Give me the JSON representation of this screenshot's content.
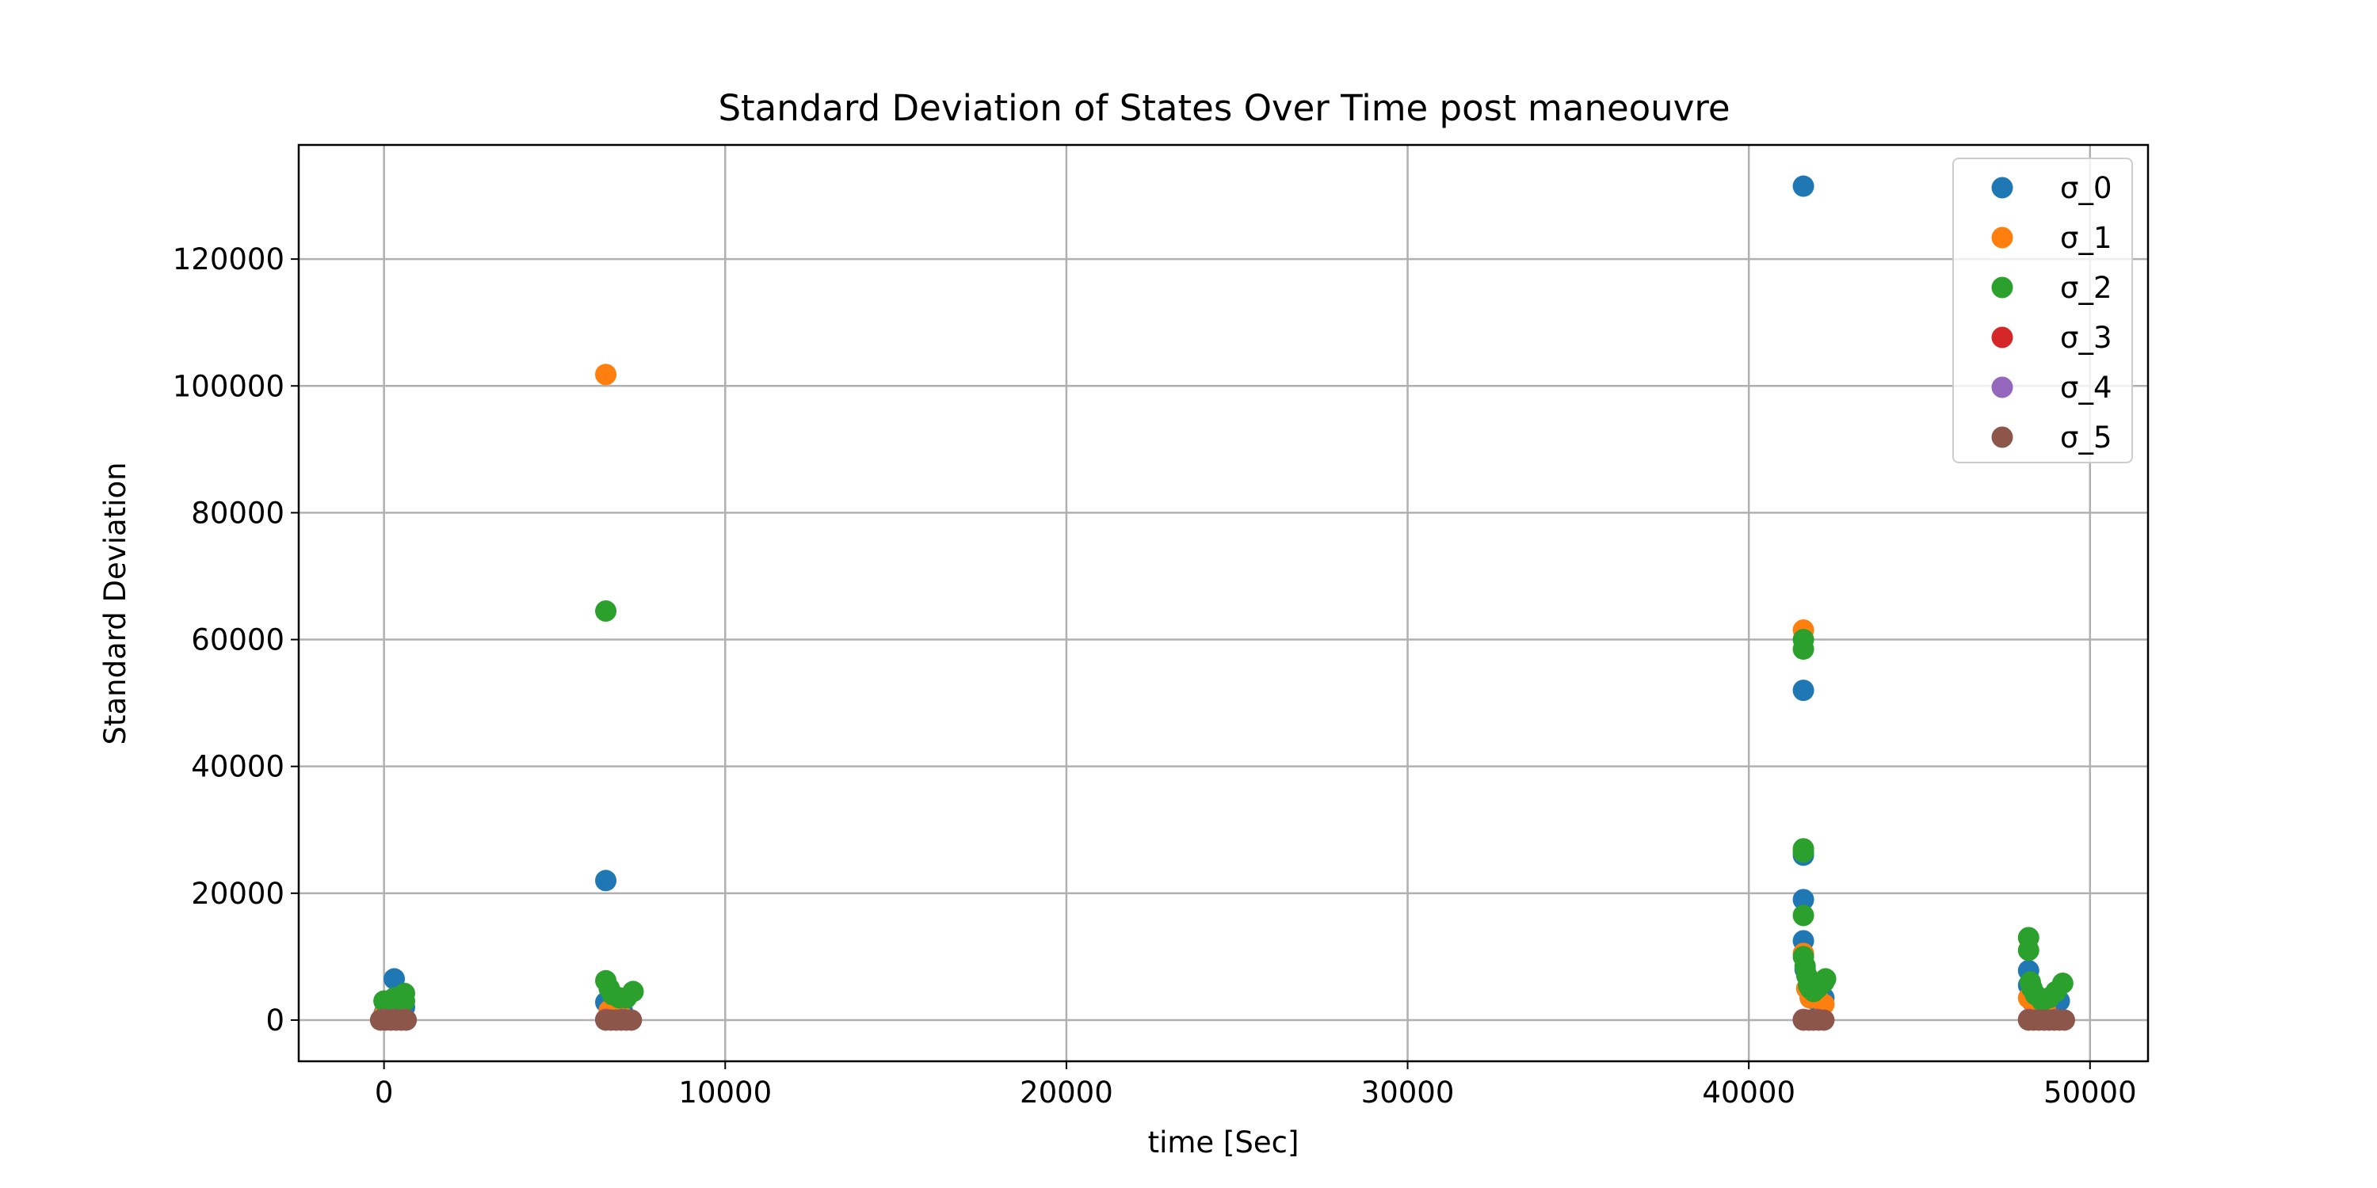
{
  "chart_data": {
    "type": "scatter",
    "title": "Standard Deviation of States Over Time post maneouvre",
    "xlabel": "time [Sec]",
    "ylabel": "Standard Deviation",
    "xlim": [
      -2500,
      51700
    ],
    "ylim": [
      -6500,
      138000
    ],
    "xticks": [
      0,
      10000,
      20000,
      30000,
      40000,
      50000
    ],
    "xtick_labels": [
      "0",
      "10000",
      "20000",
      "30000",
      "40000",
      "50000"
    ],
    "yticks": [
      0,
      20000,
      40000,
      60000,
      80000,
      100000,
      120000
    ],
    "ytick_labels": [
      "0",
      "20000",
      "40000",
      "60000",
      "80000",
      "100000",
      "120000"
    ],
    "grid": true,
    "legend_position": "top-right",
    "series": [
      {
        "name": "σ_0",
        "color": "#1f77b4",
        "points": [
          [
            0,
            1000
          ],
          [
            150,
            2500
          ],
          [
            300,
            6500
          ],
          [
            450,
            3000
          ],
          [
            600,
            2000
          ],
          [
            6500,
            22000
          ],
          [
            6500,
            2800
          ],
          [
            6700,
            1500
          ],
          [
            7000,
            1200
          ],
          [
            41600,
            131500
          ],
          [
            41600,
            52000
          ],
          [
            41600,
            26000
          ],
          [
            41600,
            19000
          ],
          [
            41600,
            12500
          ],
          [
            41650,
            8000
          ],
          [
            41700,
            5000
          ],
          [
            41800,
            3500
          ],
          [
            42000,
            3000
          ],
          [
            42200,
            3500
          ],
          [
            48200,
            7800
          ],
          [
            48200,
            5500
          ],
          [
            48300,
            3000
          ],
          [
            48500,
            2000
          ],
          [
            48800,
            1500
          ],
          [
            49100,
            3000
          ]
        ]
      },
      {
        "name": "σ_1",
        "color": "#ff7f0e",
        "points": [
          [
            0,
            800
          ],
          [
            200,
            1500
          ],
          [
            400,
            1200
          ],
          [
            6500,
            101800
          ],
          [
            6600,
            1500
          ],
          [
            6900,
            1200
          ],
          [
            41600,
            61500
          ],
          [
            41600,
            10500
          ],
          [
            41700,
            5000
          ],
          [
            41800,
            3500
          ],
          [
            42000,
            4000
          ],
          [
            42200,
            2500
          ],
          [
            48200,
            3500
          ],
          [
            48400,
            2000
          ],
          [
            48700,
            1500
          ]
        ]
      },
      {
        "name": "σ_2",
        "color": "#2ca02c",
        "points": [
          [
            0,
            3000
          ],
          [
            150,
            2000
          ],
          [
            300,
            3500
          ],
          [
            450,
            3500
          ],
          [
            600,
            4200
          ],
          [
            600,
            3000
          ],
          [
            6500,
            64500
          ],
          [
            6500,
            6200
          ],
          [
            6600,
            5000
          ],
          [
            6700,
            4000
          ],
          [
            6900,
            3500
          ],
          [
            7100,
            3500
          ],
          [
            7300,
            4500
          ],
          [
            41600,
            60000
          ],
          [
            41600,
            58500
          ],
          [
            41600,
            27000
          ],
          [
            41600,
            26500
          ],
          [
            41600,
            16500
          ],
          [
            41600,
            10000
          ],
          [
            41650,
            8500
          ],
          [
            41700,
            7000
          ],
          [
            41750,
            5500
          ],
          [
            41800,
            5000
          ],
          [
            41900,
            4500
          ],
          [
            42000,
            5000
          ],
          [
            42100,
            5500
          ],
          [
            42200,
            6000
          ],
          [
            42250,
            6500
          ],
          [
            48200,
            13000
          ],
          [
            48200,
            11000
          ],
          [
            48250,
            6000
          ],
          [
            48300,
            5000
          ],
          [
            48400,
            4000
          ],
          [
            48600,
            3000
          ],
          [
            48800,
            3500
          ],
          [
            49000,
            4500
          ],
          [
            49200,
            5800
          ]
        ]
      },
      {
        "name": "σ_3",
        "color": "#d62728",
        "points": [
          [
            0,
            100
          ],
          [
            300,
            100
          ],
          [
            600,
            100
          ],
          [
            6500,
            100
          ],
          [
            7000,
            100
          ],
          [
            41600,
            100
          ],
          [
            42000,
            100
          ],
          [
            48200,
            100
          ],
          [
            49000,
            100
          ]
        ]
      },
      {
        "name": "σ_4",
        "color": "#9467bd",
        "points": [
          [
            0,
            60
          ],
          [
            300,
            60
          ],
          [
            600,
            60
          ],
          [
            6500,
            60
          ],
          [
            7000,
            60
          ],
          [
            41600,
            60
          ],
          [
            42000,
            60
          ],
          [
            48200,
            60
          ],
          [
            49000,
            60
          ]
        ]
      },
      {
        "name": "σ_5",
        "color": "#8c564b",
        "points": [
          [
            -100,
            0
          ],
          [
            50,
            0
          ],
          [
            200,
            0
          ],
          [
            350,
            0
          ],
          [
            500,
            0
          ],
          [
            650,
            0
          ],
          [
            6500,
            0
          ],
          [
            6650,
            0
          ],
          [
            6800,
            0
          ],
          [
            6950,
            0
          ],
          [
            7100,
            0
          ],
          [
            7250,
            0
          ],
          [
            41600,
            0
          ],
          [
            41750,
            0
          ],
          [
            41900,
            0
          ],
          [
            42050,
            0
          ],
          [
            42200,
            0
          ],
          [
            48200,
            0
          ],
          [
            48350,
            0
          ],
          [
            48500,
            0
          ],
          [
            48650,
            0
          ],
          [
            48800,
            0
          ],
          [
            48950,
            0
          ],
          [
            49100,
            0
          ],
          [
            49250,
            0
          ]
        ]
      }
    ]
  }
}
